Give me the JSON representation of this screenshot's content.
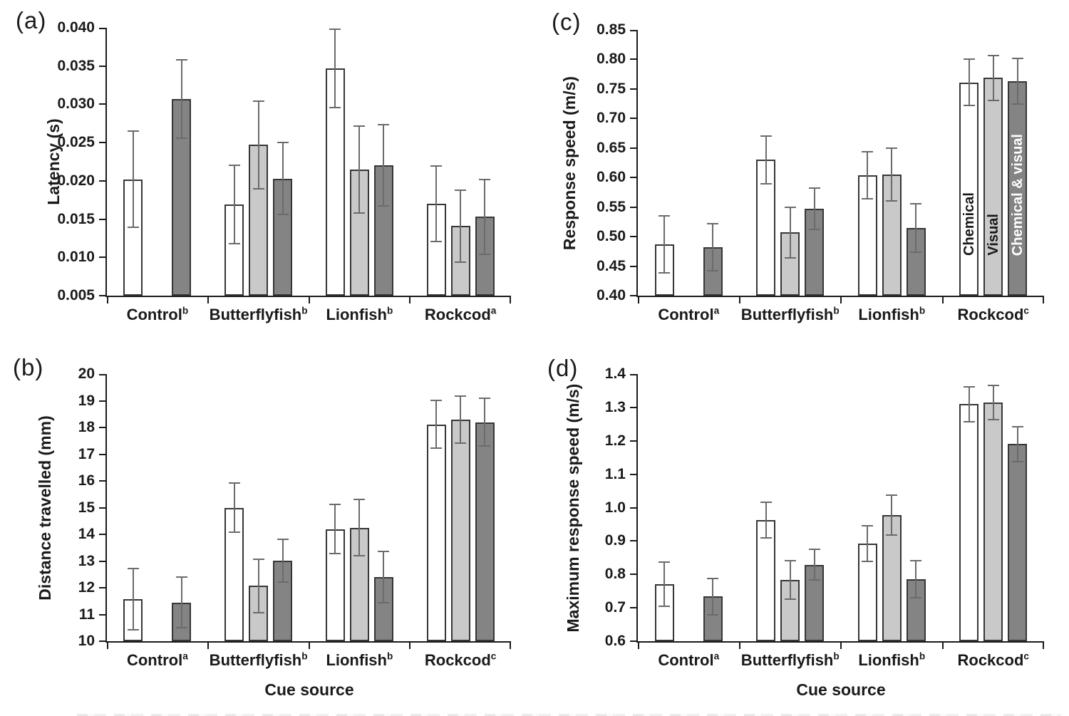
{
  "figure": {
    "x_axis_title": "Cue source",
    "series_names": [
      "Chemical",
      "Visual",
      "Chemical & visual"
    ],
    "colors": {
      "chemical": "#ffffff",
      "visual": "#c9c9c9",
      "chemical_and_visual": "#848484",
      "bar_border": "#363636",
      "error_bar": "#6b6b6b",
      "axis": "#1a1a1a",
      "text": "#1a1a1a",
      "in_bar_label_dark_text": "#1a1a1a",
      "in_bar_label_light_text": "#ffffff"
    }
  },
  "chart_data": [
    {
      "panel": "(a)",
      "type": "bar",
      "ylabel": "Latency (s)",
      "xlabel": "",
      "ylim": [
        0.005,
        0.04
      ],
      "ytick_labels": [
        "0.005",
        "0.010",
        "0.015",
        "0.020",
        "0.025",
        "0.030",
        "0.035",
        "0.040"
      ],
      "categories": [
        {
          "label": "Control",
          "sup": "b"
        },
        {
          "label": "Butterflyfish",
          "sup": "b"
        },
        {
          "label": "Lionfish",
          "sup": "b"
        },
        {
          "label": "Rockcod",
          "sup": "a"
        }
      ],
      "series": [
        {
          "name": "Chemical",
          "values": [
            0.0202,
            0.0169,
            0.0347,
            0.017
          ],
          "errors": [
            0.0063,
            0.0051,
            0.0051,
            0.0049
          ]
        },
        {
          "name": "Visual",
          "values": [
            null,
            0.0247,
            0.0215,
            0.0141
          ],
          "errors": [
            null,
            0.0057,
            0.0057,
            0.0047
          ]
        },
        {
          "name": "Chemical & visual",
          "values": [
            0.0307,
            0.0203,
            0.022,
            0.0153
          ],
          "errors": [
            0.0051,
            0.0047,
            0.0053,
            0.0049
          ]
        }
      ],
      "in_bar_labels": null
    },
    {
      "panel": "(b)",
      "type": "bar",
      "ylabel": "Distance travelled (mm)",
      "xlabel": "Cue source",
      "ylim": [
        10,
        20
      ],
      "ytick_labels": [
        "10",
        "11",
        "12",
        "13",
        "14",
        "15",
        "16",
        "17",
        "18",
        "19",
        "20"
      ],
      "categories": [
        {
          "label": "Control",
          "sup": "a"
        },
        {
          "label": "Butterflyfish",
          "sup": "b"
        },
        {
          "label": "Lionfish",
          "sup": "b"
        },
        {
          "label": "Rockcod",
          "sup": "c"
        }
      ],
      "series": [
        {
          "name": "Chemical",
          "values": [
            11.58,
            15.0,
            14.2,
            18.12
          ],
          "errors": [
            1.15,
            0.93,
            0.92,
            0.9
          ]
        },
        {
          "name": "Visual",
          "values": [
            null,
            12.08,
            14.25,
            18.3
          ],
          "errors": [
            null,
            1.0,
            1.05,
            0.88
          ]
        },
        {
          "name": "Chemical & visual",
          "values": [
            11.45,
            13.02,
            12.4,
            18.2
          ],
          "errors": [
            0.95,
            0.8,
            0.97,
            0.9
          ]
        }
      ],
      "in_bar_labels": null
    },
    {
      "panel": "(c)",
      "type": "bar",
      "ylabel": "Response speed (m/s)",
      "xlabel": "",
      "ylim": [
        0.4,
        0.85
      ],
      "ytick_labels": [
        "0.40",
        "0.45",
        "0.50",
        "0.55",
        "0.60",
        "0.65",
        "0.70",
        "0.75",
        "0.80",
        "0.85"
      ],
      "categories": [
        {
          "label": "Control",
          "sup": "a"
        },
        {
          "label": "Butterflyfish",
          "sup": "b"
        },
        {
          "label": "Lionfish",
          "sup": "b"
        },
        {
          "label": "Rockcod",
          "sup": "c"
        }
      ],
      "series": [
        {
          "name": "Chemical",
          "values": [
            0.487,
            0.63,
            0.604,
            0.761
          ],
          "errors": [
            0.048,
            0.04,
            0.04,
            0.039
          ]
        },
        {
          "name": "Visual",
          "values": [
            null,
            0.507,
            0.605,
            0.769
          ],
          "errors": [
            null,
            0.043,
            0.045,
            0.038
          ]
        },
        {
          "name": "Chemical & visual",
          "values": [
            0.482,
            0.547,
            0.515,
            0.763
          ],
          "errors": [
            0.04,
            0.035,
            0.041,
            0.039
          ]
        }
      ],
      "in_bar_labels": {
        "category_index": 3,
        "labels": [
          "Chemical",
          "Visual",
          "Chemical & visual"
        ]
      }
    },
    {
      "panel": "(d)",
      "type": "bar",
      "ylabel": "Maximum response speed (m/s)",
      "xlabel": "Cue source",
      "ylim": [
        0.6,
        1.4
      ],
      "ytick_labels": [
        "0.6",
        "0.7",
        "0.8",
        "0.9",
        "1.0",
        "1.1",
        "1.2",
        "1.3",
        "1.4"
      ],
      "categories": [
        {
          "label": "Control",
          "sup": "a"
        },
        {
          "label": "Butterflyfish",
          "sup": "b"
        },
        {
          "label": "Lionfish",
          "sup": "b"
        },
        {
          "label": "Rockcod",
          "sup": "c"
        }
      ],
      "series": [
        {
          "name": "Chemical",
          "values": [
            0.77,
            0.963,
            0.892,
            1.31
          ],
          "errors": [
            0.066,
            0.053,
            0.054,
            0.052
          ]
        },
        {
          "name": "Visual",
          "values": [
            null,
            0.784,
            0.977,
            1.315
          ],
          "errors": [
            null,
            0.058,
            0.06,
            0.051
          ]
        },
        {
          "name": "Chemical & visual",
          "values": [
            0.734,
            0.829,
            0.786,
            1.19
          ],
          "errors": [
            0.054,
            0.046,
            0.056,
            0.052
          ]
        }
      ],
      "in_bar_labels": null
    }
  ]
}
